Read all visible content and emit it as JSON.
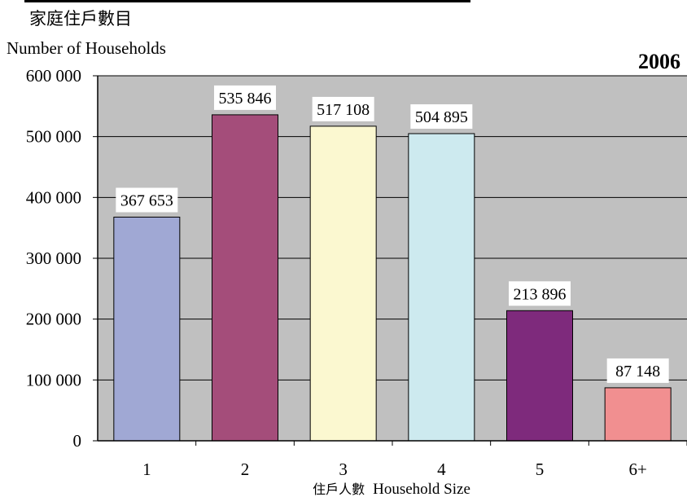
{
  "chart_data": {
    "type": "bar",
    "title_zh": "家庭住戶數目",
    "ylabel": "Number of Households",
    "year": "2006",
    "xlabel_zh": "住戶人數",
    "xlabel_en": "Household Size",
    "categories": [
      "1",
      "2",
      "3",
      "4",
      "5",
      "6+"
    ],
    "values": [
      367653,
      535846,
      517108,
      504895,
      213896,
      87148
    ],
    "value_labels": [
      "367 653",
      "535 846",
      "517 108",
      "504 895",
      "213 896",
      "87 148"
    ],
    "yticks": [
      0,
      100000,
      200000,
      300000,
      400000,
      500000,
      600000
    ],
    "ytick_labels": [
      "0",
      "100 000",
      "200 000",
      "300 000",
      "400 000",
      "500 000",
      "600 000"
    ],
    "ylim": [
      0,
      600000
    ],
    "grid": true,
    "plot_background": "#c0c0c0",
    "bar_colors": [
      "#a0a8d4",
      "#a44d7a",
      "#fbf8d0",
      "#cdeaef",
      "#7e2a7c",
      "#f18f90"
    ]
  }
}
